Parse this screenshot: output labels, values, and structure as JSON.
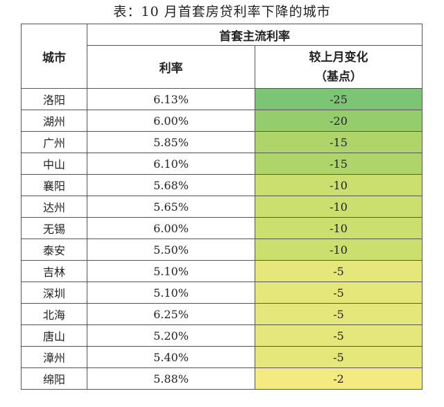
{
  "caption": "表：10 月首套房贷利率下降的城市",
  "headers": {
    "city": "城市",
    "group": "首套主流利率",
    "rate": "利率",
    "change_line1": "较上月变化",
    "change_line2": "（基点）"
  },
  "rows": [
    {
      "city": "洛阳",
      "rate": "6.13%",
      "change": "-25",
      "color": "#7cc574"
    },
    {
      "city": "湖州",
      "rate": "6.00%",
      "change": "-20",
      "color": "#95cc6c"
    },
    {
      "city": "广州",
      "rate": "5.85%",
      "change": "-15",
      "color": "#aed46a"
    },
    {
      "city": "中山",
      "rate": "6.10%",
      "change": "-15",
      "color": "#aed46a"
    },
    {
      "city": "襄阳",
      "rate": "5.68%",
      "change": "-10",
      "color": "#cadf6e"
    },
    {
      "city": "达州",
      "rate": "5.65%",
      "change": "-10",
      "color": "#cadf6e"
    },
    {
      "city": "无锡",
      "rate": "6.00%",
      "change": "-10",
      "color": "#cadf6e"
    },
    {
      "city": "泰安",
      "rate": "5.50%",
      "change": "-10",
      "color": "#cadf6e"
    },
    {
      "city": "吉林",
      "rate": "5.10%",
      "change": "-5",
      "color": "#e6e77a"
    },
    {
      "city": "深圳",
      "rate": "5.10%",
      "change": "-5",
      "color": "#e6e77a"
    },
    {
      "city": "北海",
      "rate": "6.25%",
      "change": "-5",
      "color": "#e6e77a"
    },
    {
      "city": "唐山",
      "rate": "5.20%",
      "change": "-5",
      "color": "#e6e77a"
    },
    {
      "city": "漳州",
      "rate": "5.40%",
      "change": "-5",
      "color": "#e6e77a"
    },
    {
      "city": "绵阳",
      "rate": "5.88%",
      "change": "-2",
      "color": "#f3ea82"
    }
  ]
}
